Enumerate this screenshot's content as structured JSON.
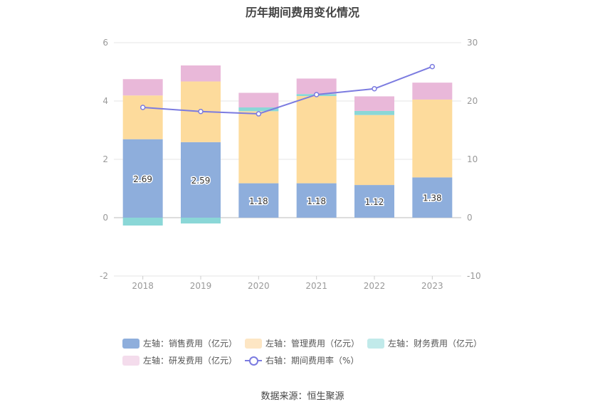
{
  "title": "历年期间费用变化情况",
  "source": "数据来源：恒生聚源",
  "colors": {
    "sales": "#8eaedc",
    "admin": "#fddb9c",
    "finance": "#8ad7d7",
    "rd": "#e9b8d9",
    "rate": "#7b7be0"
  },
  "legend": [
    {
      "label": "左轴：销售费用（亿元）",
      "color": "#8eaedc",
      "type": "bar"
    },
    {
      "label": "左轴：管理费用（亿元）",
      "color": "#fde6c4",
      "type": "bar"
    },
    {
      "label": "左轴：财务费用（亿元）",
      "color": "#c1eaea",
      "type": "bar"
    },
    {
      "label": "左轴：研发费用（亿元）",
      "color": "#f4dcec",
      "type": "bar"
    },
    {
      "label": "右轴：期间费用率（%）",
      "color": "#7b7be0",
      "type": "line"
    }
  ],
  "chart_data": {
    "type": "bar",
    "stacked": true,
    "title": "历年期间费用变化情况",
    "categories": [
      "2018",
      "2019",
      "2020",
      "2021",
      "2022",
      "2023"
    ],
    "left_axis": {
      "ylim": [
        -2,
        6
      ],
      "ticks": [
        -2,
        0,
        2,
        4,
        6
      ]
    },
    "right_axis": {
      "ylim": [
        -10,
        30
      ],
      "ticks": [
        -10,
        0,
        10,
        20,
        30
      ]
    },
    "grid": true,
    "legend_position": "bottom",
    "series": [
      {
        "name": "左轴：销售费用（亿元）",
        "axis": "left",
        "values": [
          2.69,
          2.59,
          1.18,
          1.18,
          1.12,
          1.38
        ],
        "labels": [
          "2.69",
          "2.59",
          "1.18",
          "1.18",
          "1.12",
          "1.38"
        ]
      },
      {
        "name": "左轴：管理费用（亿元）",
        "axis": "left",
        "values": [
          1.5,
          2.08,
          2.47,
          2.99,
          2.4,
          2.67
        ]
      },
      {
        "name": "左轴：财务费用（亿元）",
        "axis": "left",
        "values": [
          -0.27,
          -0.2,
          0.13,
          0.07,
          0.14,
          0.0
        ]
      },
      {
        "name": "左轴：研发费用（亿元）",
        "axis": "left",
        "values": [
          0.56,
          0.55,
          0.5,
          0.53,
          0.5,
          0.58
        ]
      },
      {
        "name": "右轴：期间费用率（%）",
        "axis": "right",
        "type": "line",
        "values": [
          18.9,
          18.2,
          17.8,
          21.1,
          22.1,
          25.9
        ]
      }
    ]
  }
}
